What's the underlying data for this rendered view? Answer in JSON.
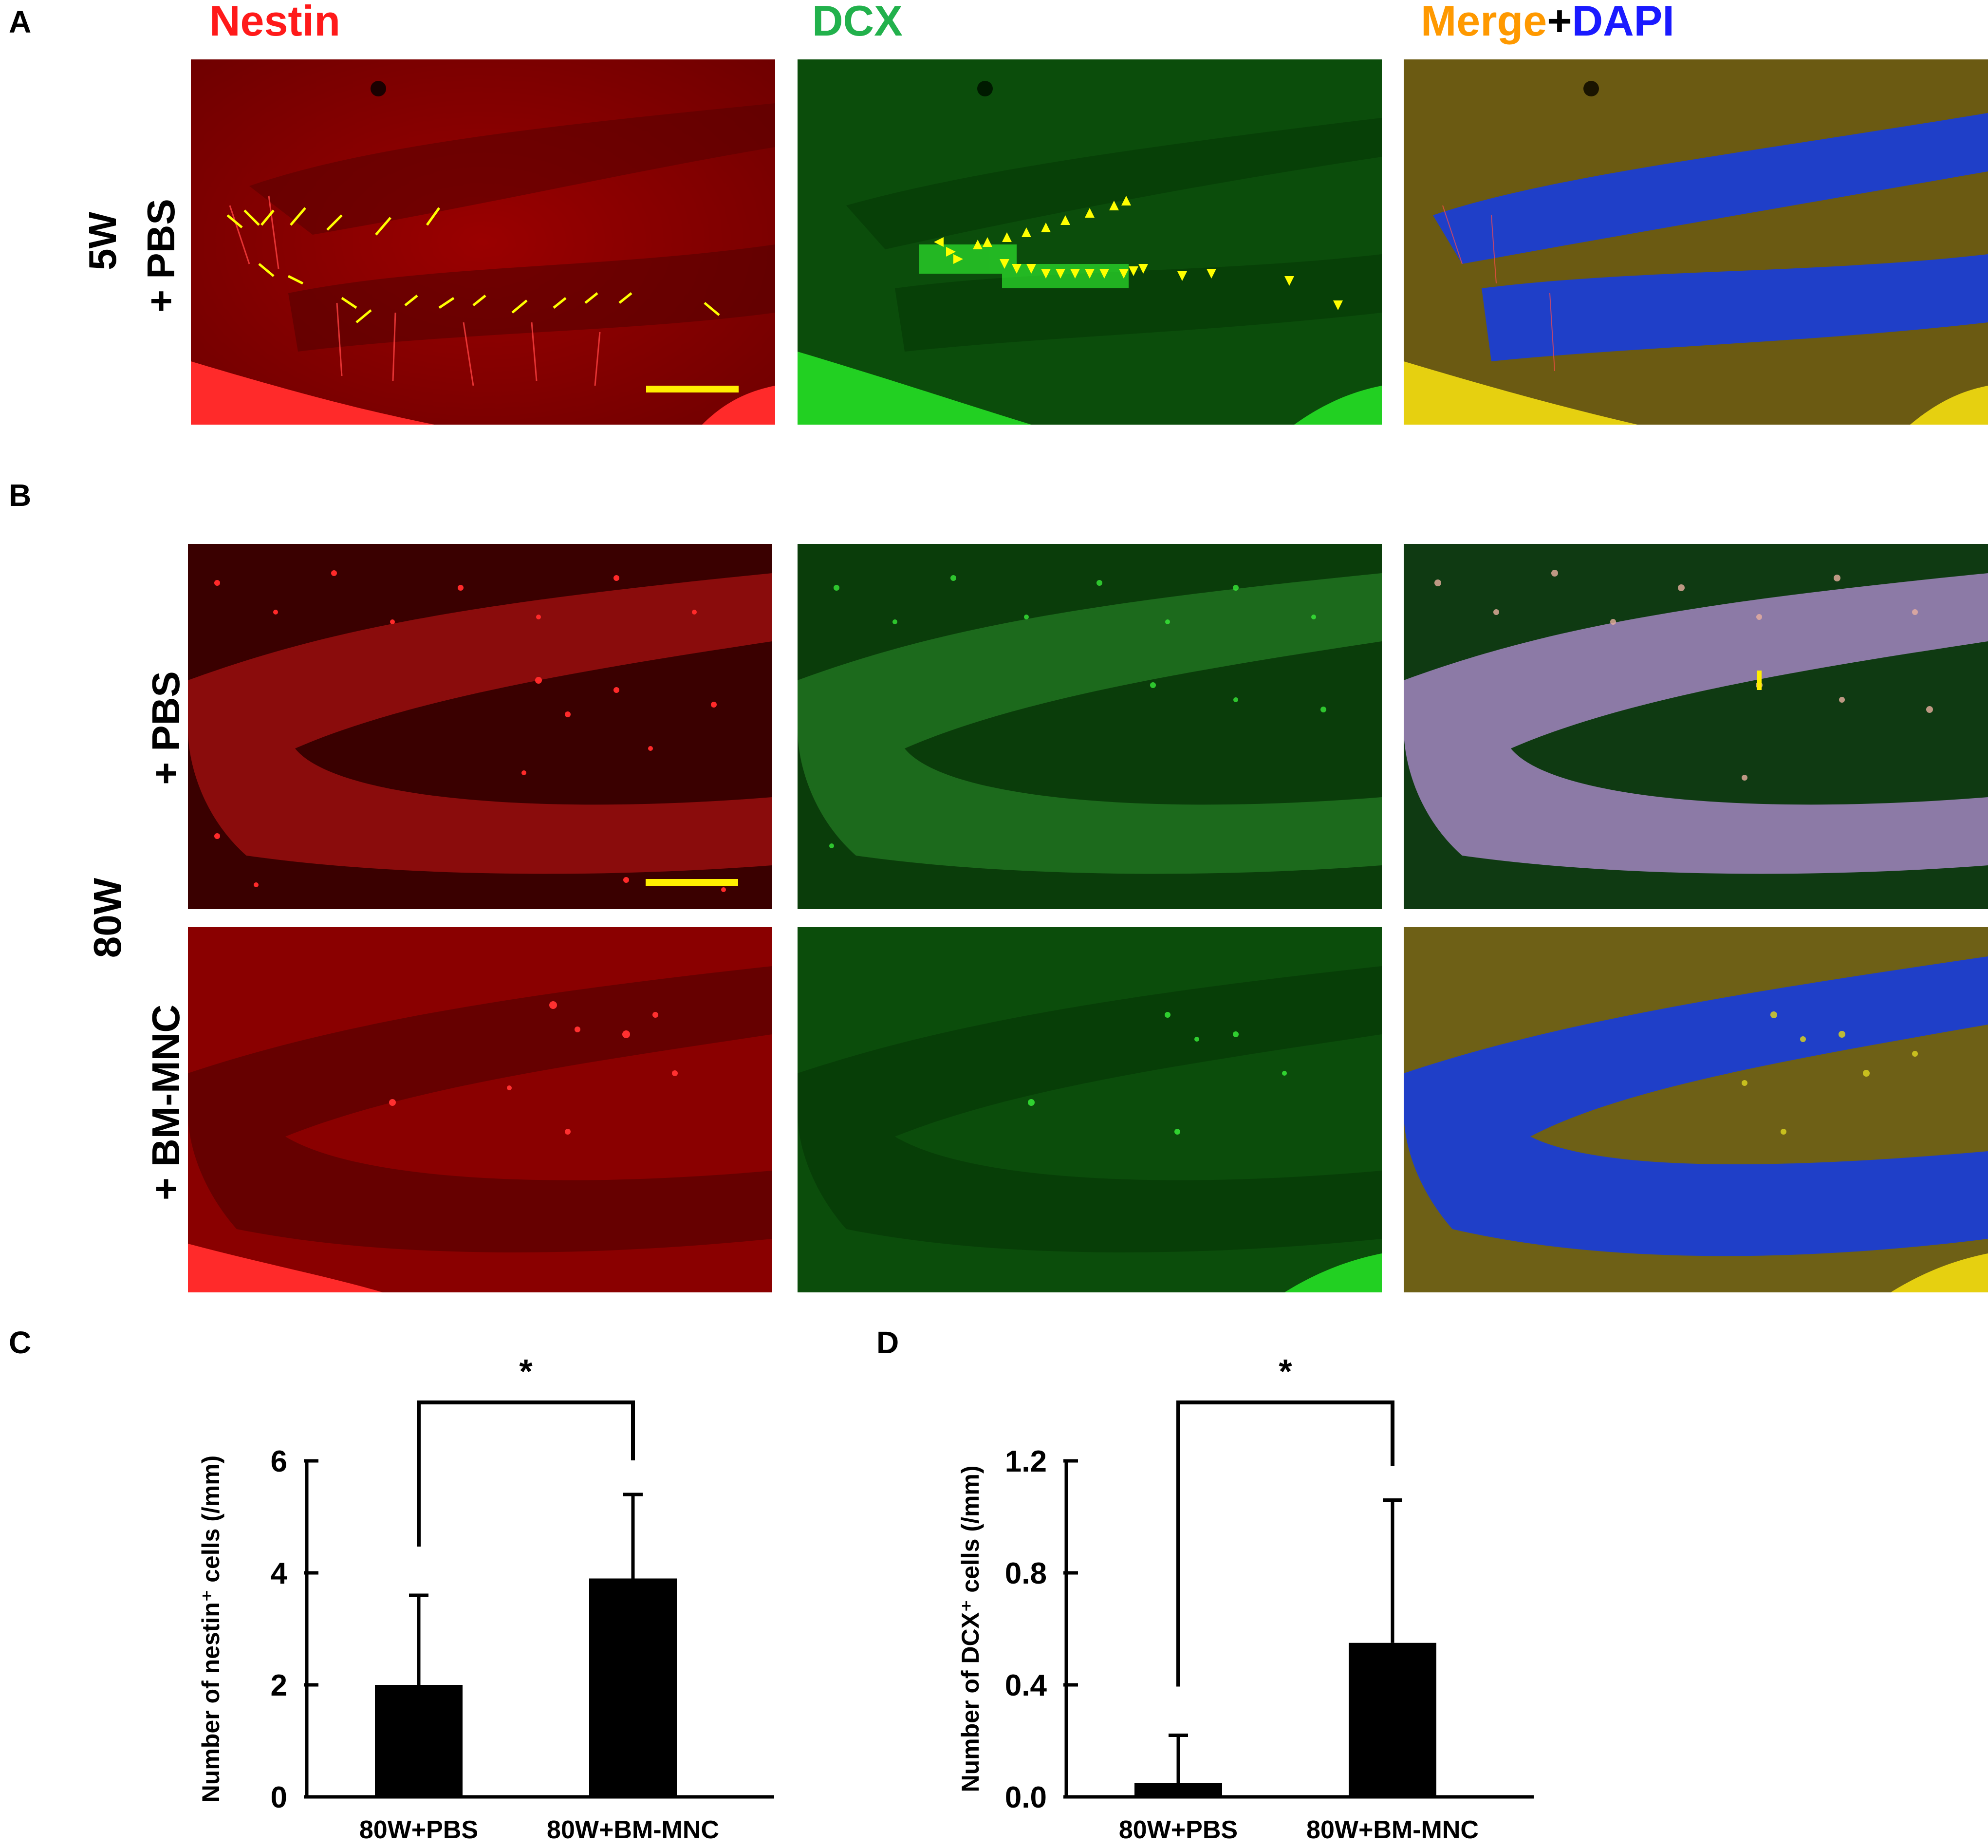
{
  "panel_labels": {
    "a": "A",
    "b": "B",
    "c": "C",
    "d": "D"
  },
  "column_headers": {
    "nestin": {
      "text": "Nestin",
      "color": "#ff1a1a"
    },
    "dcx": {
      "text": "DCX",
      "color": "#22b14c"
    },
    "merge": {
      "text": "Merge",
      "color": "#ff9900"
    },
    "plus": {
      "text": "+",
      "color": "#000000"
    },
    "dapi": {
      "text": "DAPI",
      "color": "#1a1aff"
    }
  },
  "row_labels": {
    "a_age": "5W",
    "a_treatment": "+ PBS",
    "b_age": "80W",
    "b_pbs": "+ PBS",
    "b_bmmnc": "+ BM-MNC"
  },
  "colors": {
    "nestin_bg": "#8a0000",
    "nestin_bright": "#ff2020",
    "dcx_bg": "#0b4d0b",
    "dcx_bright": "#33ff33",
    "merge_bg": "#6b5a12",
    "dapi_blue": "#1f3fc8",
    "scale_bar": "#ffee00",
    "marker": "#ffff00",
    "bar_fill": "#000000"
  },
  "chart_data": [
    {
      "id": "C",
      "type": "bar",
      "categories": [
        "80W+PBS",
        "80W+BM-MNC"
      ],
      "values": [
        2.0,
        3.9
      ],
      "errors": [
        1.6,
        1.5
      ],
      "ylabel": "Number of nestin⁺ cells  (/mm)",
      "yticks": [
        "0",
        "2",
        "4",
        "6"
      ],
      "ylim": [
        0,
        6
      ],
      "significance": "*"
    },
    {
      "id": "D",
      "type": "bar",
      "categories": [
        "80W+PBS",
        "80W+BM-MNC"
      ],
      "values": [
        0.05,
        0.55
      ],
      "errors": [
        0.17,
        0.51
      ],
      "ylabel": "Number of DCX⁺ cells  (/mm)",
      "yticks": [
        "0.0",
        "0.4",
        "0.8",
        "1.2"
      ],
      "ylim": [
        0,
        1.2
      ],
      "significance": "*"
    }
  ]
}
